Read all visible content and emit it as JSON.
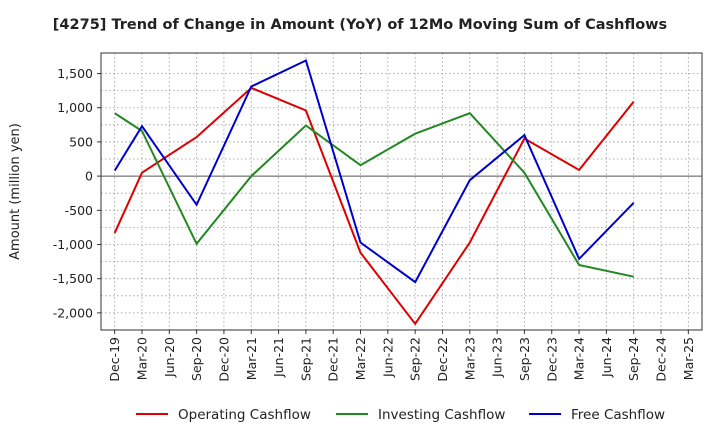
{
  "chart_data": {
    "type": "line",
    "title": "[4275]  Trend of Change in Amount (YoY) of 12Mo Moving Sum of Cashflows",
    "xlabel": "",
    "ylabel": "Amount (million yen)",
    "ylim": [
      -2250,
      1800
    ],
    "yticks": [
      -2000,
      -1500,
      -1000,
      -500,
      0,
      500,
      1000,
      1500
    ],
    "ytick_labels": [
      "-2,000",
      "-1,500",
      "-1,000",
      "-500",
      "0",
      "500",
      "1,000",
      "1,500"
    ],
    "categories": [
      "Dec-19",
      "Mar-20",
      "Jun-20",
      "Sep-20",
      "Dec-20",
      "Mar-21",
      "Jun-21",
      "Sep-21",
      "Dec-21",
      "Mar-22",
      "Jun-22",
      "Sep-22",
      "Dec-22",
      "Mar-23",
      "Jun-23",
      "Sep-23",
      "Dec-23",
      "Mar-24",
      "Jun-24",
      "Sep-24",
      "Dec-24",
      "Mar-25"
    ],
    "grid": true,
    "legend_position": "bottom",
    "series": [
      {
        "name": "Operating Cashflow",
        "color": "#dd0000",
        "values": [
          -830,
          50,
          null,
          570,
          null,
          1290,
          null,
          960,
          null,
          -1120,
          null,
          -2160,
          null,
          -970,
          null,
          550,
          null,
          90,
          null,
          1090,
          null,
          null
        ]
      },
      {
        "name": "Investing Cashflow",
        "color": "#228822",
        "values": [
          920,
          660,
          null,
          -990,
          null,
          0,
          null,
          740,
          null,
          160,
          null,
          620,
          null,
          920,
          null,
          50,
          null,
          -1300,
          null,
          -1470,
          null,
          null
        ]
      },
      {
        "name": "Free Cashflow",
        "color": "#0000cc",
        "values": [
          80,
          730,
          null,
          -420,
          null,
          1310,
          null,
          1690,
          null,
          -970,
          null,
          -1550,
          null,
          -60,
          null,
          600,
          null,
          -1210,
          null,
          -390,
          null,
          null
        ]
      }
    ]
  }
}
